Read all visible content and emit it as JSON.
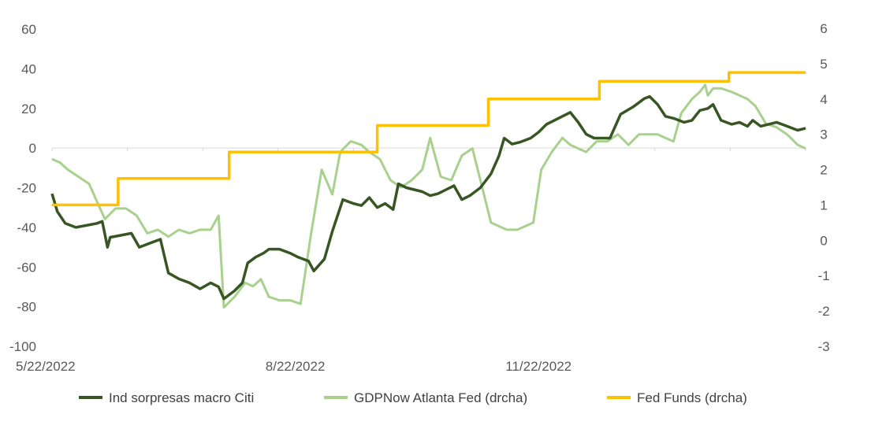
{
  "chart_data": {
    "type": "line",
    "title": "",
    "x_ticks": [
      "5/22/2022",
      "8/22/2022",
      "11/22/2022"
    ],
    "x_range": [
      "2022-05-22",
      "2023-03-03"
    ],
    "y_left": {
      "range": [
        -100,
        60
      ],
      "ticks": [
        "60",
        "40",
        "20",
        "0",
        "-20",
        "-40",
        "-60",
        "-80",
        "-100"
      ]
    },
    "y_right": {
      "range": [
        -3,
        6
      ],
      "ticks": [
        "6",
        "5",
        "4",
        "3",
        "2",
        "1",
        "0",
        "-1",
        "-2",
        "-3"
      ]
    },
    "zero_line": true,
    "legend_position": "bottom",
    "series": [
      {
        "name": "Ind sorpresas macro Citi",
        "axis": "left",
        "color": "#375623",
        "points": [
          [
            "2022-05-22",
            -23
          ],
          [
            "2022-05-24",
            -32
          ],
          [
            "2022-05-27",
            -38
          ],
          [
            "2022-05-31",
            -40
          ],
          [
            "2022-06-04",
            -39
          ],
          [
            "2022-06-08",
            -38
          ],
          [
            "2022-06-10",
            -37
          ],
          [
            "2022-06-12",
            -50
          ],
          [
            "2022-06-13",
            -45
          ],
          [
            "2022-06-17",
            -44
          ],
          [
            "2022-06-21",
            -43
          ],
          [
            "2022-06-24",
            -50
          ],
          [
            "2022-06-28",
            -48
          ],
          [
            "2022-07-02",
            -46
          ],
          [
            "2022-07-05",
            -63
          ],
          [
            "2022-07-09",
            -66
          ],
          [
            "2022-07-13",
            -68
          ],
          [
            "2022-07-17",
            -71
          ],
          [
            "2022-07-21",
            -68
          ],
          [
            "2022-07-24",
            -70
          ],
          [
            "2022-07-26",
            -76
          ],
          [
            "2022-07-30",
            -72
          ],
          [
            "2022-08-02",
            -68
          ],
          [
            "2022-08-04",
            -58
          ],
          [
            "2022-08-07",
            -55
          ],
          [
            "2022-08-10",
            -53
          ],
          [
            "2022-08-12",
            -51
          ],
          [
            "2022-08-16",
            -51
          ],
          [
            "2022-08-20",
            -53
          ],
          [
            "2022-08-23",
            -55
          ],
          [
            "2022-08-27",
            -57
          ],
          [
            "2022-08-29",
            -62
          ],
          [
            "2022-09-02",
            -56
          ],
          [
            "2022-09-05",
            -42
          ],
          [
            "2022-09-09",
            -26
          ],
          [
            "2022-09-13",
            -28
          ],
          [
            "2022-09-16",
            -29
          ],
          [
            "2022-09-19",
            -25
          ],
          [
            "2022-09-22",
            -30
          ],
          [
            "2022-09-25",
            -28
          ],
          [
            "2022-09-28",
            -31
          ],
          [
            "2022-09-30",
            -18
          ],
          [
            "2022-10-03",
            -20
          ],
          [
            "2022-10-06",
            -21
          ],
          [
            "2022-10-09",
            -22
          ],
          [
            "2022-10-12",
            -24
          ],
          [
            "2022-10-15",
            -23
          ],
          [
            "2022-10-18",
            -21
          ],
          [
            "2022-10-21",
            -19
          ],
          [
            "2022-10-24",
            -26
          ],
          [
            "2022-10-27",
            -24
          ],
          [
            "2022-10-31",
            -20
          ],
          [
            "2022-11-04",
            -13
          ],
          [
            "2022-11-07",
            -4
          ],
          [
            "2022-11-09",
            5
          ],
          [
            "2022-11-12",
            2
          ],
          [
            "2022-11-15",
            3
          ],
          [
            "2022-11-19",
            5
          ],
          [
            "2022-11-22",
            8
          ],
          [
            "2022-11-25",
            12
          ],
          [
            "2022-11-28",
            14
          ],
          [
            "2022-12-01",
            16
          ],
          [
            "2022-12-04",
            18
          ],
          [
            "2022-12-07",
            13
          ],
          [
            "2022-12-10",
            7
          ],
          [
            "2022-12-13",
            5
          ],
          [
            "2022-12-16",
            5
          ],
          [
            "2022-12-19",
            5
          ],
          [
            "2022-12-23",
            17
          ],
          [
            "2022-12-28",
            21
          ],
          [
            "2023-01-01",
            25
          ],
          [
            "2023-01-03",
            26
          ],
          [
            "2023-01-06",
            22
          ],
          [
            "2023-01-09",
            16
          ],
          [
            "2023-01-12",
            15
          ],
          [
            "2023-01-16",
            13
          ],
          [
            "2023-01-19",
            14
          ],
          [
            "2023-01-22",
            19
          ],
          [
            "2023-01-25",
            20
          ],
          [
            "2023-01-27",
            22
          ],
          [
            "2023-01-30",
            14
          ],
          [
            "2023-02-03",
            12
          ],
          [
            "2023-02-06",
            13
          ],
          [
            "2023-02-09",
            11
          ],
          [
            "2023-02-11",
            14
          ],
          [
            "2023-02-14",
            11
          ],
          [
            "2023-02-17",
            12
          ],
          [
            "2023-02-20",
            13
          ],
          [
            "2023-02-24",
            11
          ],
          [
            "2023-02-28",
            9
          ],
          [
            "2023-03-03",
            10
          ]
        ]
      },
      {
        "name": "GDPNow Atlanta Fed (drcha)",
        "axis": "right",
        "color": "#a9d18e",
        "points": [
          [
            "2022-05-22",
            2.3
          ],
          [
            "2022-05-25",
            2.2
          ],
          [
            "2022-05-28",
            2.0
          ],
          [
            "2022-06-01",
            1.8
          ],
          [
            "2022-06-05",
            1.6
          ],
          [
            "2022-06-08",
            1.1
          ],
          [
            "2022-06-11",
            0.6
          ],
          [
            "2022-06-15",
            0.9
          ],
          [
            "2022-06-19",
            0.9
          ],
          [
            "2022-06-23",
            0.7
          ],
          [
            "2022-06-27",
            0.2
          ],
          [
            "2022-07-01",
            0.3
          ],
          [
            "2022-07-05",
            0.1
          ],
          [
            "2022-07-09",
            0.3
          ],
          [
            "2022-07-13",
            0.2
          ],
          [
            "2022-07-17",
            0.3
          ],
          [
            "2022-07-21",
            0.3
          ],
          [
            "2022-07-24",
            0.7
          ],
          [
            "2022-07-26",
            -1.9
          ],
          [
            "2022-07-30",
            -1.6
          ],
          [
            "2022-08-03",
            -1.2
          ],
          [
            "2022-08-06",
            -1.3
          ],
          [
            "2022-08-09",
            -1.1
          ],
          [
            "2022-08-12",
            -1.6
          ],
          [
            "2022-08-16",
            -1.7
          ],
          [
            "2022-08-20",
            -1.7
          ],
          [
            "2022-08-24",
            -1.8
          ],
          [
            "2022-08-28",
            0.2
          ],
          [
            "2022-09-01",
            2.0
          ],
          [
            "2022-09-05",
            1.3
          ],
          [
            "2022-09-08",
            2.5
          ],
          [
            "2022-09-12",
            2.8
          ],
          [
            "2022-09-16",
            2.7
          ],
          [
            "2022-09-19",
            2.5
          ],
          [
            "2022-09-23",
            2.3
          ],
          [
            "2022-09-27",
            1.7
          ],
          [
            "2022-10-01",
            1.5
          ],
          [
            "2022-10-05",
            1.7
          ],
          [
            "2022-10-09",
            2.0
          ],
          [
            "2022-10-12",
            2.9
          ],
          [
            "2022-10-16",
            1.8
          ],
          [
            "2022-10-20",
            1.7
          ],
          [
            "2022-10-24",
            2.4
          ],
          [
            "2022-10-28",
            2.6
          ],
          [
            "2022-11-01",
            1.4
          ],
          [
            "2022-11-04",
            0.5
          ],
          [
            "2022-11-07",
            0.4
          ],
          [
            "2022-11-10",
            0.3
          ],
          [
            "2022-11-14",
            0.3
          ],
          [
            "2022-11-17",
            0.4
          ],
          [
            "2022-11-20",
            0.5
          ],
          [
            "2022-11-23",
            2.0
          ],
          [
            "2022-11-27",
            2.5
          ],
          [
            "2022-12-01",
            2.9
          ],
          [
            "2022-12-04",
            2.7
          ],
          [
            "2022-12-07",
            2.6
          ],
          [
            "2022-12-10",
            2.5
          ],
          [
            "2022-12-14",
            2.8
          ],
          [
            "2022-12-18",
            2.8
          ],
          [
            "2022-12-22",
            3.0
          ],
          [
            "2022-12-26",
            2.7
          ],
          [
            "2022-12-30",
            3.0
          ],
          [
            "2023-01-03",
            3.0
          ],
          [
            "2023-01-06",
            3.0
          ],
          [
            "2023-01-09",
            2.9
          ],
          [
            "2023-01-12",
            2.8
          ],
          [
            "2023-01-15",
            3.6
          ],
          [
            "2023-01-19",
            4.0
          ],
          [
            "2023-01-22",
            4.2
          ],
          [
            "2023-01-24",
            4.4
          ],
          [
            "2023-01-25",
            4.1
          ],
          [
            "2023-01-27",
            4.3
          ],
          [
            "2023-01-30",
            4.3
          ],
          [
            "2023-02-03",
            4.2
          ],
          [
            "2023-02-06",
            4.1
          ],
          [
            "2023-02-09",
            4.0
          ],
          [
            "2023-02-12",
            3.8
          ],
          [
            "2023-02-16",
            3.3
          ],
          [
            "2023-02-20",
            3.2
          ],
          [
            "2023-02-24",
            3.0
          ],
          [
            "2023-02-28",
            2.7
          ],
          [
            "2023-03-03",
            2.6
          ]
        ]
      },
      {
        "name": "Fed Funds (drcha)",
        "axis": "right",
        "color": "#ffc000",
        "points": [
          [
            "2022-05-22",
            1.0
          ],
          [
            "2022-06-16",
            1.0
          ],
          [
            "2022-06-16",
            1.75
          ],
          [
            "2022-07-28",
            1.75
          ],
          [
            "2022-07-28",
            2.5
          ],
          [
            "2022-09-22",
            2.5
          ],
          [
            "2022-09-22",
            3.25
          ],
          [
            "2022-11-03",
            3.25
          ],
          [
            "2022-11-03",
            4.0
          ],
          [
            "2022-12-15",
            4.0
          ],
          [
            "2022-12-15",
            4.5
          ],
          [
            "2023-02-02",
            4.5
          ],
          [
            "2023-02-02",
            4.75
          ],
          [
            "2023-03-03",
            4.75
          ]
        ]
      }
    ]
  }
}
